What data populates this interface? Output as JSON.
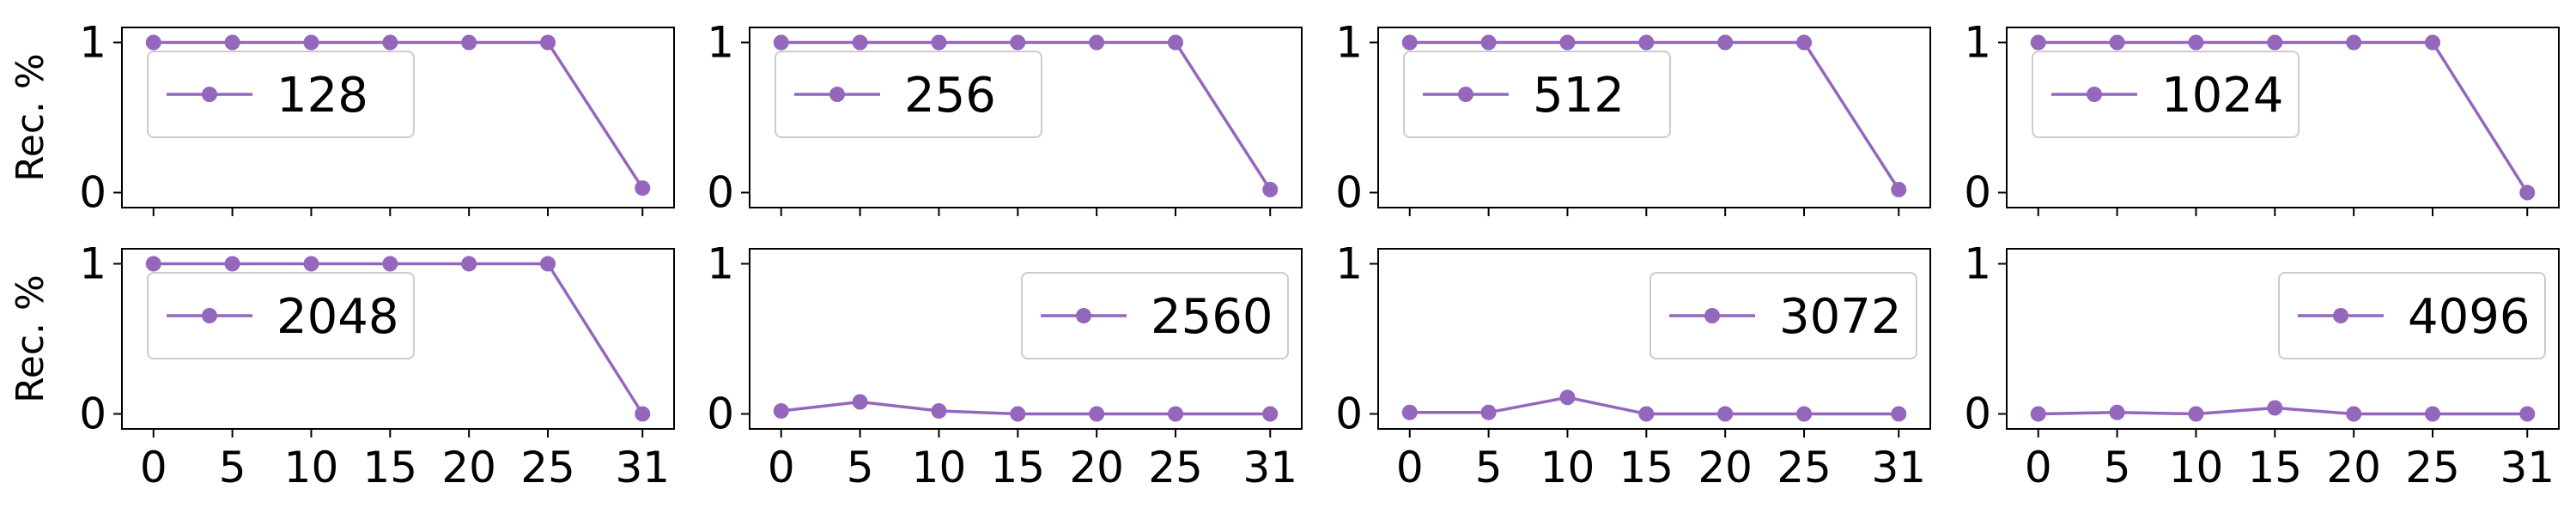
{
  "chart_data": {
    "type": "line",
    "layout": "2x4 grid of small multiples with shared x-axis ticks on bottom row",
    "ylabel": "Rec. %",
    "x": [
      0,
      5,
      10,
      15,
      20,
      25,
      31
    ],
    "xticks": [
      "0",
      "5",
      "10",
      "15",
      "20",
      "25",
      "31"
    ],
    "yticks": [
      "0",
      "1"
    ],
    "ylim": [
      -0.1,
      1.1
    ],
    "series_color": "#9467bd",
    "marker": "circle",
    "grid": false,
    "panels": [
      {
        "name": "128",
        "legend_position": "upper-left",
        "values": [
          1,
          1,
          1,
          1,
          1,
          1,
          0.03
        ]
      },
      {
        "name": "256",
        "legend_position": "upper-left",
        "values": [
          1,
          1,
          1,
          1,
          1,
          1,
          0.02
        ]
      },
      {
        "name": "512",
        "legend_position": "upper-left",
        "values": [
          1,
          1,
          1,
          1,
          1,
          1,
          0.02
        ]
      },
      {
        "name": "1024",
        "legend_position": "upper-left",
        "values": [
          1,
          1,
          1,
          1,
          1,
          1,
          0.0
        ]
      },
      {
        "name": "2048",
        "legend_position": "upper-left",
        "values": [
          1,
          1,
          1,
          1,
          1,
          1,
          0.0
        ]
      },
      {
        "name": "2560",
        "legend_position": "upper-right",
        "values": [
          0.02,
          0.08,
          0.02,
          0.0,
          0.0,
          0.0,
          0.0
        ]
      },
      {
        "name": "3072",
        "legend_position": "upper-right",
        "values": [
          0.01,
          0.01,
          0.11,
          0.0,
          0.0,
          0.0,
          0.0
        ]
      },
      {
        "name": "4096",
        "legend_position": "upper-right",
        "values": [
          0.0,
          0.01,
          0.0,
          0.04,
          0.0,
          0.0,
          0.0
        ]
      }
    ]
  }
}
